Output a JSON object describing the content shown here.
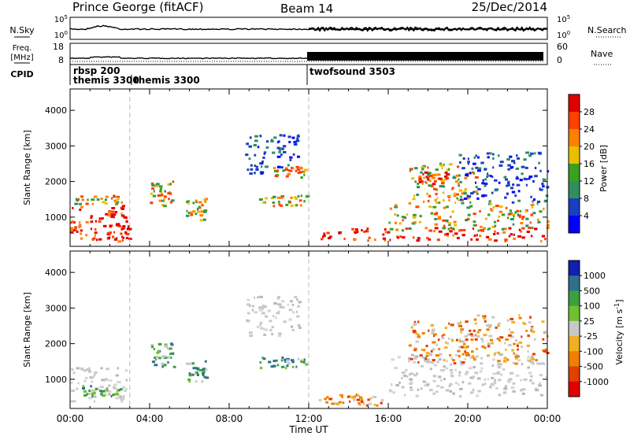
{
  "header": {
    "station": "Prince George (fitACF)",
    "beam": "Beam 14",
    "date": "25/Dec/2014"
  },
  "summary_panels": {
    "nsky_label": "N.Sky",
    "nsearch_label": "N.Search",
    "nsky_ticks": [
      "10^5",
      "10^0"
    ],
    "nsearch_ticks": [
      "10^5",
      "10^0"
    ],
    "freq_label": "Freq.",
    "freq_unit": "[MHz]",
    "freq_ticks": [
      "18",
      "8"
    ],
    "nave_label": "Nave",
    "nave_ticks": [
      "60",
      "0"
    ],
    "cpid_label": "CPID",
    "cpid_entries": [
      "rbsp 200",
      "themis 3300",
      "themis 3300",
      "twofsound 3503"
    ]
  },
  "time_axis": {
    "label": "Time UT",
    "ticks": [
      "00:00",
      "04:00",
      "08:00",
      "12:00",
      "16:00",
      "20:00",
      "00:00"
    ]
  },
  "chart_data": [
    {
      "type": "heatmap",
      "title": "Power",
      "xlabel": "Time UT",
      "ylabel": "Slant Range [km]",
      "xlim": [
        0,
        24
      ],
      "ylim": [
        180,
        4600
      ],
      "yticks": [
        "1000",
        "2000",
        "3000",
        "4000"
      ],
      "colorbar_label": "Power [dB]",
      "colorbar_ticks": [
        "28",
        "24",
        "20",
        "16",
        "12",
        "8",
        "4"
      ],
      "colorbar_colors": [
        "#e00000",
        "#ff4000",
        "#ff8000",
        "#e8c000",
        "#3aa020",
        "#2f8f5f",
        "#1a3fbf",
        "#0000ff"
      ],
      "regions": [
        {
          "t0": 0.0,
          "t1": 2.8,
          "r0": 350,
          "r1": 1300,
          "level": "high"
        },
        {
          "t0": 0.2,
          "t1": 2.6,
          "r0": 1350,
          "r1": 1600,
          "level": "mid"
        },
        {
          "t0": 1.8,
          "t1": 3.0,
          "r0": 300,
          "r1": 800,
          "level": "high"
        },
        {
          "t0": 4.0,
          "t1": 5.2,
          "r0": 1300,
          "r1": 2000,
          "level": "mid"
        },
        {
          "t0": 5.8,
          "t1": 6.8,
          "r0": 900,
          "r1": 1500,
          "level": "mid"
        },
        {
          "t0": 8.8,
          "t1": 11.5,
          "r0": 2200,
          "r1": 3300,
          "level": "low"
        },
        {
          "t0": 10.2,
          "t1": 11.8,
          "r0": 2100,
          "r1": 2400,
          "level": "mid"
        },
        {
          "t0": 9.5,
          "t1": 11.9,
          "r0": 1300,
          "r1": 1600,
          "level": "mid"
        },
        {
          "t0": 12.5,
          "t1": 24.0,
          "r0": 300,
          "r1": 700,
          "level": "high"
        },
        {
          "t0": 16.0,
          "t1": 24.0,
          "r0": 600,
          "r1": 1400,
          "level": "mid"
        },
        {
          "t0": 17.0,
          "t1": 20.5,
          "r0": 1400,
          "r1": 2500,
          "level": "mid"
        },
        {
          "t0": 17.5,
          "t1": 19.0,
          "r0": 1900,
          "r1": 2300,
          "level": "high"
        },
        {
          "t0": 19.5,
          "t1": 24.0,
          "r0": 1400,
          "r1": 2800,
          "level": "low"
        }
      ]
    },
    {
      "type": "heatmap",
      "title": "Velocity",
      "xlabel": "Time UT",
      "ylabel": "Slant Range [km]",
      "xlim": [
        0,
        24
      ],
      "ylim": [
        180,
        4600
      ],
      "yticks": [
        "1000",
        "2000",
        "3000",
        "4000"
      ],
      "colorbar_label": "Velocity [m s^-1]",
      "colorbar_ticks": [
        "1000",
        "500",
        "100",
        "25",
        "-25",
        "-100",
        "-500",
        "-1000"
      ],
      "colorbar_colors": [
        "#1020b0",
        "#2f6f8f",
        "#3aa040",
        "#70c030",
        "#c8c8c8",
        "#f0b020",
        "#f08000",
        "#e04000",
        "#e00000"
      ],
      "regions": [
        {
          "t0": 0.0,
          "t1": 2.8,
          "r0": 350,
          "r1": 1300,
          "level": "ground"
        },
        {
          "t0": 0.5,
          "t1": 2.5,
          "r0": 500,
          "r1": 800,
          "level": "pos"
        },
        {
          "t0": 4.0,
          "t1": 5.2,
          "r0": 1300,
          "r1": 2000,
          "level": "pos"
        },
        {
          "t0": 5.8,
          "t1": 6.8,
          "r0": 900,
          "r1": 1500,
          "level": "pos"
        },
        {
          "t0": 8.8,
          "t1": 11.5,
          "r0": 2200,
          "r1": 3300,
          "level": "ground"
        },
        {
          "t0": 9.5,
          "t1": 11.9,
          "r0": 1300,
          "r1": 1600,
          "level": "pos"
        },
        {
          "t0": 12.5,
          "t1": 16.0,
          "r0": 250,
          "r1": 600,
          "level": "neg"
        },
        {
          "t0": 16.0,
          "t1": 24.0,
          "r0": 500,
          "r1": 1700,
          "level": "ground"
        },
        {
          "t0": 17.0,
          "t1": 20.5,
          "r0": 1400,
          "r1": 2600,
          "level": "neg"
        },
        {
          "t0": 19.5,
          "t1": 24.0,
          "r0": 1400,
          "r1": 2800,
          "level": "neg"
        }
      ]
    }
  ]
}
